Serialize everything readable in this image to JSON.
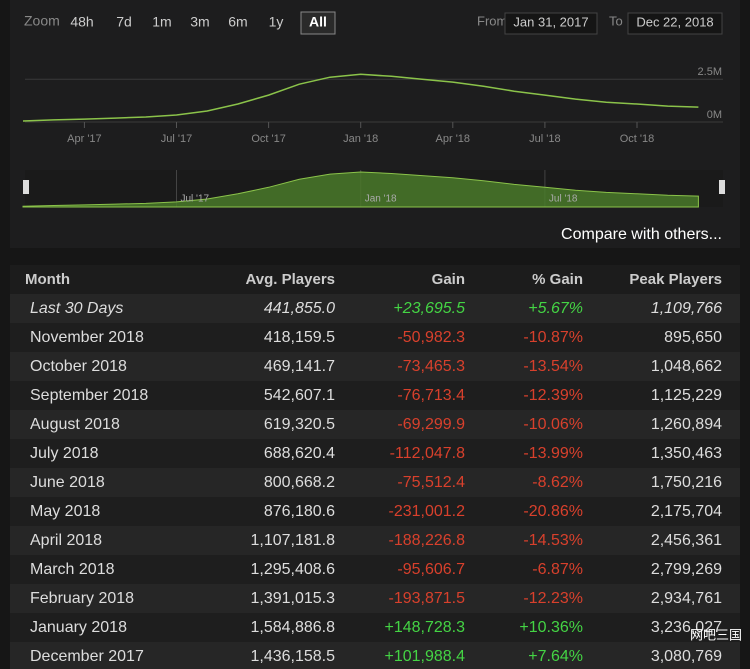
{
  "zoom": {
    "label": "Zoom",
    "options": [
      "48h",
      "7d",
      "1m",
      "3m",
      "6m",
      "1y",
      "All"
    ],
    "selected": "All"
  },
  "range": {
    "from_label": "From",
    "from": "Jan 31, 2017",
    "to_label": "To",
    "to": "Dec 22, 2018"
  },
  "chart": {
    "type": "line",
    "color": "#8bc34a",
    "x": [
      "2017-02",
      "2017-03",
      "2017-04",
      "2017-05",
      "2017-06",
      "2017-07",
      "2017-08",
      "2017-09",
      "2017-10",
      "2017-11",
      "2017-12",
      "2018-01",
      "2018-02",
      "2018-03",
      "2018-04",
      "2018-05",
      "2018-06",
      "2018-07",
      "2018-08",
      "2018-09",
      "2018-10",
      "2018-11",
      "2018-12"
    ],
    "values": [
      60000,
      120000,
      170000,
      230000,
      290000,
      410000,
      640000,
      1050000,
      1570000,
      2210000,
      2620000,
      2790000,
      2670000,
      2500000,
      2330000,
      2090000,
      1800000,
      1570000,
      1340000,
      1160000,
      1050000,
      930000,
      870000
    ],
    "ylim": [
      0,
      4500000
    ],
    "yticks": [
      {
        "value": 0,
        "label": "0M"
      },
      {
        "value": 2500000,
        "label": "2.5M"
      }
    ],
    "xticks": [
      {
        "value": "2017-04",
        "label": "Apr '17"
      },
      {
        "value": "2017-07",
        "label": "Jul '17"
      },
      {
        "value": "2017-10",
        "label": "Oct '17"
      },
      {
        "value": "2018-01",
        "label": "Jan '18"
      },
      {
        "value": "2018-04",
        "label": "Apr '18"
      },
      {
        "value": "2018-07",
        "label": "Jul '18"
      },
      {
        "value": "2018-10",
        "label": "Oct '18"
      }
    ],
    "navigator_xticks": [
      {
        "value": "2017-07",
        "label": "Jul '17"
      },
      {
        "value": "2018-01",
        "label": "Jan '18"
      },
      {
        "value": "2018-07",
        "label": "Jul '18"
      }
    ]
  },
  "compare": "Compare with others...",
  "table": {
    "header": [
      "Month",
      "Avg. Players",
      "Gain",
      "% Gain",
      "Peak Players"
    ],
    "rows": [
      [
        "Last 30 Days",
        "441,855.0",
        "+23,695.5",
        "+5.67%",
        "1,109,766"
      ],
      [
        "November 2018",
        "418,159.5",
        "-50,982.3",
        "-10.87%",
        "895,650"
      ],
      [
        "October 2018",
        "469,141.7",
        "-73,465.3",
        "-13.54%",
        "1,048,662"
      ],
      [
        "September 2018",
        "542,607.1",
        "-76,713.4",
        "-12.39%",
        "1,125,229"
      ],
      [
        "August 2018",
        "619,320.5",
        "-69,299.9",
        "-10.06%",
        "1,260,894"
      ],
      [
        "July 2018",
        "688,620.4",
        "-112,047.8",
        "-13.99%",
        "1,350,463"
      ],
      [
        "June 2018",
        "800,668.2",
        "-75,512.4",
        "-8.62%",
        "1,750,216"
      ],
      [
        "May 2018",
        "876,180.6",
        "-231,001.2",
        "-20.86%",
        "2,175,704"
      ],
      [
        "April 2018",
        "1,107,181.8",
        "-188,226.8",
        "-14.53%",
        "2,456,361"
      ],
      [
        "March 2018",
        "1,295,408.6",
        "-95,606.7",
        "-6.87%",
        "2,799,269"
      ],
      [
        "February 2018",
        "1,391,015.3",
        "-193,871.5",
        "-12.23%",
        "2,934,761"
      ],
      [
        "January 2018",
        "1,584,886.8",
        "+148,728.3",
        "+10.36%",
        "3,236,027"
      ],
      [
        "December 2017",
        "1,436,158.5",
        "+101,988.4",
        "+7.64%",
        "3,080,769"
      ]
    ]
  },
  "watermark": "网吧三国"
}
